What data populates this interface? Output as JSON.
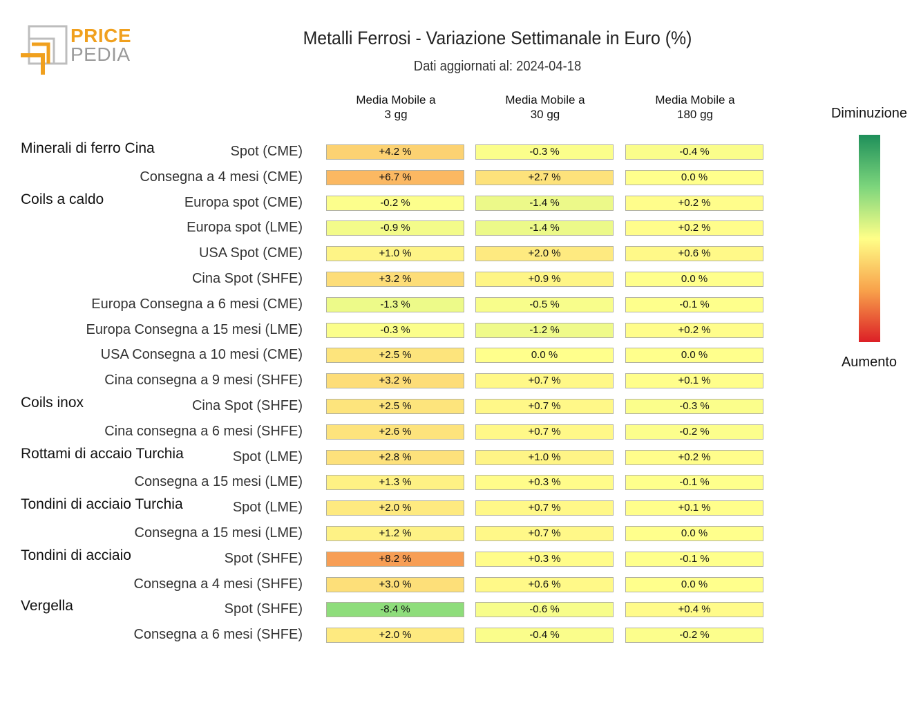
{
  "logo": {
    "line1": "PRICE",
    "line2": "PEDIA"
  },
  "chart_data": {
    "type": "heatmap",
    "title": "Metalli Ferrosi - Variazione Settimanale in Euro (%)",
    "subtitle": "Dati aggiornati al: 2024-04-18",
    "columns": [
      "Media Mobile a 3 gg",
      "Media Mobile a 30 gg",
      "Media Mobile a 180 gg"
    ],
    "column_lines": [
      [
        "Media Mobile a",
        "3 gg"
      ],
      [
        "Media Mobile a",
        "30 gg"
      ],
      [
        "Media Mobile a",
        "180 gg"
      ]
    ],
    "legend": {
      "top": "Diminuzione",
      "bottom": "Aumento",
      "colors": [
        "#1e8f5a",
        "#7cd57c",
        "#ffff88",
        "#f8a24b",
        "#dc1f26"
      ]
    },
    "rows": [
      {
        "group": "Minerali di ferro Cina",
        "label": "Spot (CME)",
        "values": [
          4.2,
          -0.3,
          -0.4
        ],
        "texts": [
          "+4.2 %",
          "-0.3 %",
          "-0.4 %"
        ]
      },
      {
        "group": "",
        "label": "Consegna a 4 mesi (CME)",
        "values": [
          6.7,
          2.7,
          0.0
        ],
        "texts": [
          "+6.7 %",
          "+2.7 %",
          "0.0 %"
        ]
      },
      {
        "group": "Coils a caldo",
        "label": "Europa spot (CME)",
        "values": [
          -0.2,
          -1.4,
          0.2
        ],
        "texts": [
          "-0.2 %",
          "-1.4 %",
          "+0.2 %"
        ]
      },
      {
        "group": "",
        "label": "Europa spot (LME)",
        "values": [
          -0.9,
          -1.4,
          0.2
        ],
        "texts": [
          "-0.9 %",
          "-1.4 %",
          "+0.2 %"
        ]
      },
      {
        "group": "",
        "label": "USA Spot (CME)",
        "values": [
          1.0,
          2.0,
          0.6
        ],
        "texts": [
          "+1.0 %",
          "+2.0 %",
          "+0.6 %"
        ]
      },
      {
        "group": "",
        "label": "Cina Spot (SHFE)",
        "values": [
          3.2,
          0.9,
          0.0
        ],
        "texts": [
          "+3.2 %",
          "+0.9 %",
          "0.0 %"
        ]
      },
      {
        "group": "",
        "label": "Europa Consegna a 6 mesi (CME)",
        "values": [
          -1.3,
          -0.5,
          -0.1
        ],
        "texts": [
          "-1.3 %",
          "-0.5 %",
          "-0.1 %"
        ]
      },
      {
        "group": "",
        "label": "Europa Consegna a 15 mesi (LME)",
        "values": [
          -0.3,
          -1.2,
          0.2
        ],
        "texts": [
          "-0.3 %",
          "-1.2 %",
          "+0.2 %"
        ]
      },
      {
        "group": "",
        "label": "USA Consegna a 10 mesi (CME)",
        "values": [
          2.5,
          0.0,
          0.0
        ],
        "texts": [
          "+2.5 %",
          "0.0 %",
          "0.0 %"
        ]
      },
      {
        "group": "",
        "label": "Cina consegna a 9 mesi (SHFE)",
        "values": [
          3.2,
          0.7,
          0.1
        ],
        "texts": [
          "+3.2 %",
          "+0.7 %",
          "+0.1 %"
        ]
      },
      {
        "group": "Coils inox",
        "label": "Cina Spot (SHFE)",
        "values": [
          2.5,
          0.7,
          -0.3
        ],
        "texts": [
          "+2.5 %",
          "+0.7 %",
          "-0.3 %"
        ]
      },
      {
        "group": "",
        "label": "Cina consegna a 6 mesi (SHFE)",
        "values": [
          2.6,
          0.7,
          -0.2
        ],
        "texts": [
          "+2.6 %",
          "+0.7 %",
          "-0.2 %"
        ]
      },
      {
        "group": "Rottami di accaio Turchia",
        "label": "Spot (LME)",
        "values": [
          2.8,
          1.0,
          0.2
        ],
        "texts": [
          "+2.8 %",
          "+1.0 %",
          "+0.2 %"
        ]
      },
      {
        "group": "",
        "label": "Consegna a 15 mesi (LME)",
        "values": [
          1.3,
          0.3,
          -0.1
        ],
        "texts": [
          "+1.3 %",
          "+0.3 %",
          "-0.1 %"
        ]
      },
      {
        "group": "Tondini di acciaio Turchia",
        "label": "Spot (LME)",
        "values": [
          2.0,
          0.7,
          0.1
        ],
        "texts": [
          "+2.0 %",
          "+0.7 %",
          "+0.1 %"
        ]
      },
      {
        "group": "",
        "label": "Consegna a 15 mesi (LME)",
        "values": [
          1.2,
          0.7,
          0.0
        ],
        "texts": [
          "+1.2 %",
          "+0.7 %",
          "0.0 %"
        ]
      },
      {
        "group": "Tondini di acciaio",
        "label": "Spot (SHFE)",
        "values": [
          8.2,
          0.3,
          -0.1
        ],
        "texts": [
          "+8.2 %",
          "+0.3 %",
          "-0.1 %"
        ]
      },
      {
        "group": "",
        "label": "Consegna a 4 mesi (SHFE)",
        "values": [
          3.0,
          0.6,
          0.0
        ],
        "texts": [
          "+3.0 %",
          "+0.6 %",
          "0.0 %"
        ]
      },
      {
        "group": "Vergella",
        "label": "Spot (SHFE)",
        "values": [
          -8.4,
          -0.6,
          0.4
        ],
        "texts": [
          "-8.4 %",
          "-0.6 %",
          "+0.4 %"
        ]
      },
      {
        "group": "",
        "label": "Consegna a 6 mesi (SHFE)",
        "values": [
          2.0,
          -0.4,
          -0.2
        ],
        "texts": [
          "+2.0 %",
          "-0.4 %",
          "-0.2 %"
        ]
      }
    ]
  }
}
